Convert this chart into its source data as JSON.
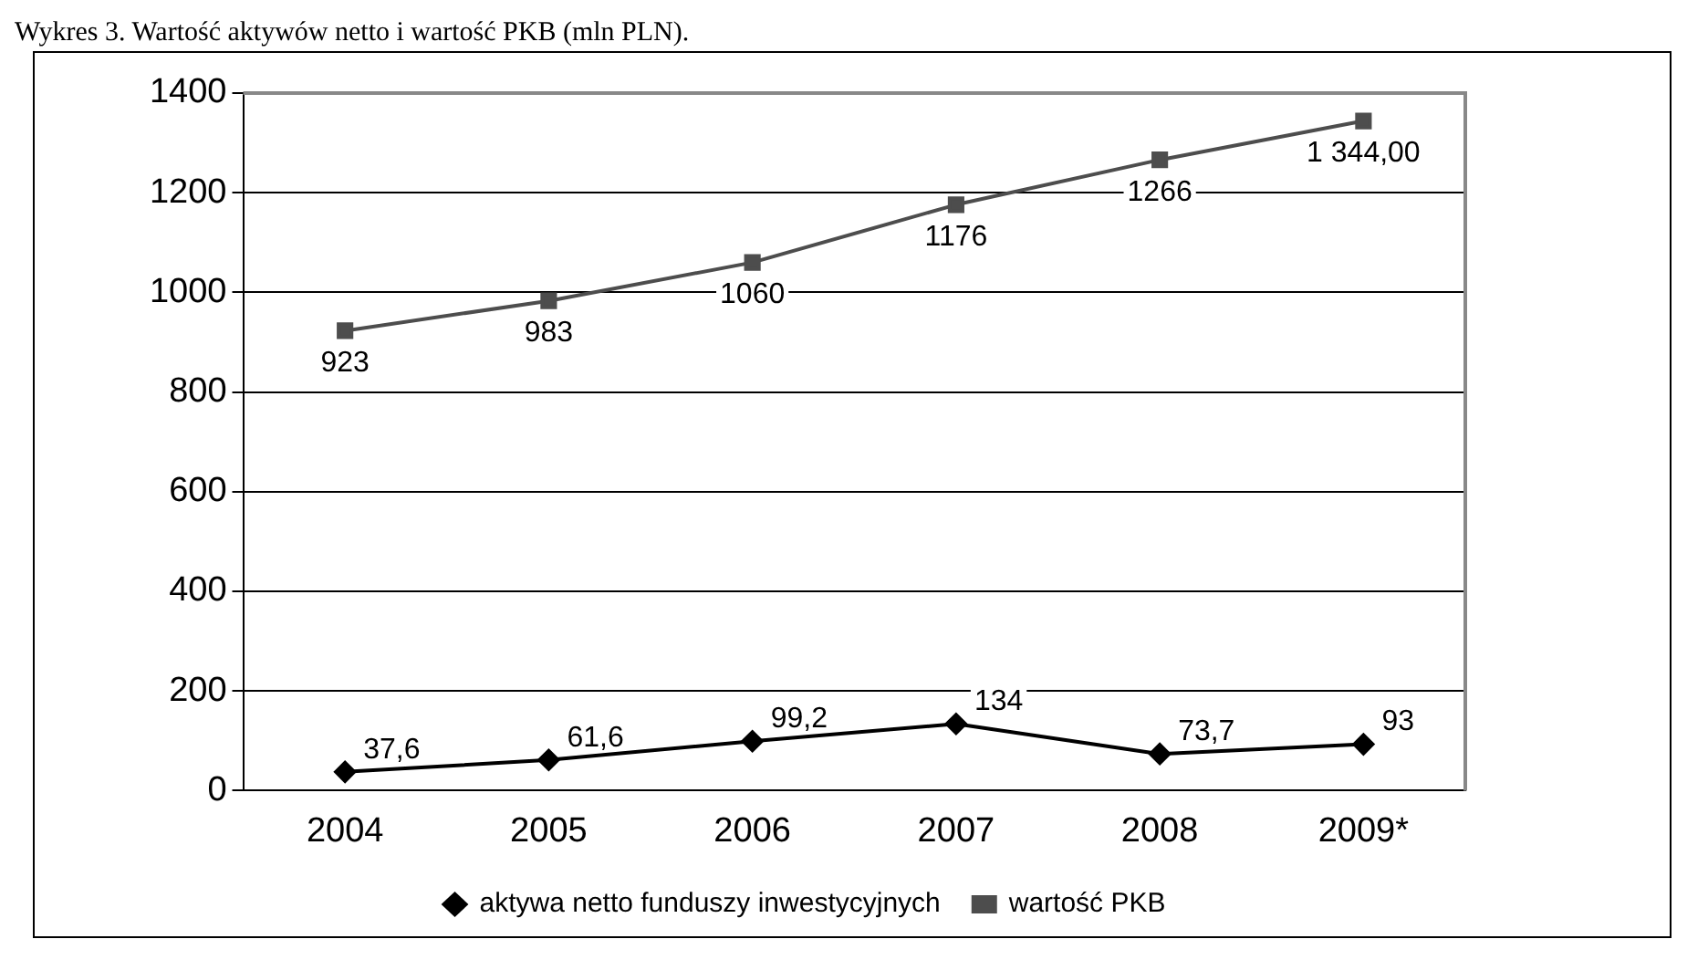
{
  "chart_data": {
    "type": "line",
    "title": "Wykres 3. Wartość aktywów netto i wartość PKB (mln PLN).",
    "categories": [
      "2004",
      "2005",
      "2006",
      "2007",
      "2008",
      "2009*"
    ],
    "series": [
      {
        "name": "aktywa netto funduszy inwestycyjnych",
        "color": "#000000",
        "marker": "diamond",
        "values": [
          37.6,
          61.6,
          99.2,
          134,
          73.7,
          93
        ],
        "value_labels": [
          "37,6",
          "61,6",
          "99,2",
          "134",
          "73,7",
          "93"
        ]
      },
      {
        "name": "wartość PKB",
        "color": "#4d4d4d",
        "marker": "square",
        "values": [
          923,
          983,
          1060,
          1176,
          1266,
          1344
        ],
        "value_labels": [
          "923",
          "983",
          "1060",
          "1176",
          "1266",
          "1 344,00"
        ]
      }
    ],
    "ylim": [
      0,
      1400
    ],
    "yticks": [
      0,
      200,
      400,
      600,
      800,
      1000,
      1200,
      1400
    ],
    "grid": "y",
    "legend": "bottom",
    "line_style": "solid"
  }
}
